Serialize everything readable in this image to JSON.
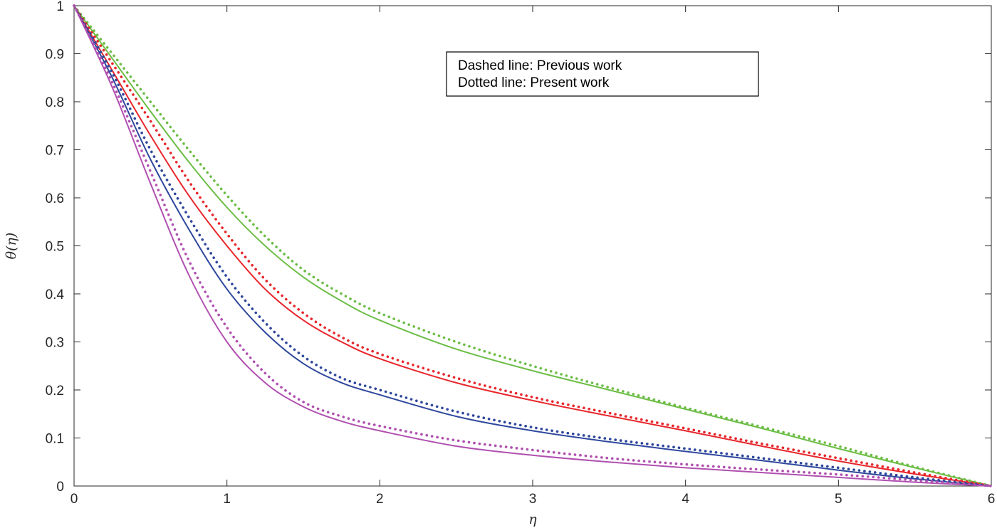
{
  "chart_data": {
    "type": "line",
    "xlabel": "η",
    "ylabel": "θ(η)",
    "xlim": [
      0,
      6
    ],
    "ylim": [
      0,
      1
    ],
    "xticks": [
      0,
      1,
      2,
      3,
      4,
      5,
      6
    ],
    "yticks": [
      0,
      0.1,
      0.2,
      0.3,
      0.4,
      0.5,
      0.6,
      0.7,
      0.8,
      0.9,
      1
    ],
    "ytick_labels": [
      "0",
      "0.1",
      "0.2",
      "0.3",
      "0.4",
      "0.5",
      "0.6",
      "0.7",
      "0.8",
      "0.9",
      "1"
    ],
    "grid": false,
    "legend": {
      "position": "top-center",
      "entries": [
        "Dashed line: Previous work",
        "Dotted line: Present work"
      ]
    },
    "series": [
      {
        "color": "#6cbd45",
        "style": "solid",
        "x": [
          0,
          0.25,
          0.5,
          0.75,
          1,
          1.25,
          1.5,
          1.75,
          2,
          2.5,
          3,
          3.5,
          4,
          4.5,
          5,
          5.5,
          6
        ],
        "y": [
          1,
          0.89,
          0.78,
          0.675,
          0.58,
          0.5,
          0.435,
          0.385,
          0.345,
          0.285,
          0.24,
          0.2,
          0.16,
          0.12,
          0.078,
          0.038,
          0
        ]
      },
      {
        "color": "#6cbd45",
        "style": "dotted",
        "x": [
          0,
          0.25,
          0.5,
          0.75,
          1,
          1.25,
          1.5,
          1.75,
          2,
          2.5,
          3,
          3.5,
          4,
          4.5,
          5,
          5.5,
          6
        ],
        "y": [
          1,
          0.9,
          0.8,
          0.7,
          0.605,
          0.52,
          0.45,
          0.4,
          0.36,
          0.3,
          0.25,
          0.205,
          0.163,
          0.123,
          0.083,
          0.04,
          0
        ]
      },
      {
        "color": "#e8262b",
        "style": "solid",
        "x": [
          0,
          0.25,
          0.5,
          0.75,
          1,
          1.25,
          1.5,
          1.75,
          2,
          2.5,
          3,
          3.5,
          4,
          4.5,
          5,
          5.5,
          6
        ],
        "y": [
          1,
          0.865,
          0.73,
          0.605,
          0.5,
          0.41,
          0.345,
          0.3,
          0.265,
          0.215,
          0.178,
          0.146,
          0.115,
          0.083,
          0.052,
          0.025,
          0
        ]
      },
      {
        "color": "#e8262b",
        "style": "dotted",
        "x": [
          0,
          0.25,
          0.5,
          0.75,
          1,
          1.25,
          1.5,
          1.75,
          2,
          2.5,
          3,
          3.5,
          4,
          4.5,
          5,
          5.5,
          6
        ],
        "y": [
          1,
          0.88,
          0.76,
          0.635,
          0.525,
          0.43,
          0.36,
          0.31,
          0.275,
          0.225,
          0.185,
          0.152,
          0.12,
          0.088,
          0.058,
          0.028,
          0
        ]
      },
      {
        "color": "#2e479c",
        "style": "solid",
        "x": [
          0,
          0.25,
          0.5,
          0.75,
          1,
          1.25,
          1.5,
          1.75,
          2,
          2.5,
          3,
          3.5,
          4,
          4.5,
          5,
          5.5,
          6
        ],
        "y": [
          1,
          0.85,
          0.68,
          0.535,
          0.41,
          0.32,
          0.255,
          0.215,
          0.19,
          0.145,
          0.115,
          0.092,
          0.072,
          0.053,
          0.033,
          0.015,
          0
        ]
      },
      {
        "color": "#2e479c",
        "style": "dotted",
        "x": [
          0,
          0.25,
          0.5,
          0.75,
          1,
          1.25,
          1.5,
          1.75,
          2,
          2.5,
          3,
          3.5,
          4,
          4.5,
          5,
          5.5,
          6
        ],
        "y": [
          1,
          0.86,
          0.7,
          0.56,
          0.435,
          0.34,
          0.27,
          0.225,
          0.2,
          0.155,
          0.122,
          0.098,
          0.078,
          0.058,
          0.038,
          0.018,
          0
        ]
      },
      {
        "color": "#b04fb0",
        "style": "solid",
        "x": [
          0,
          0.25,
          0.5,
          0.75,
          1,
          1.25,
          1.5,
          1.75,
          2,
          2.5,
          3,
          3.5,
          4,
          4.5,
          5,
          5.5,
          6
        ],
        "y": [
          1,
          0.83,
          0.63,
          0.44,
          0.3,
          0.215,
          0.165,
          0.135,
          0.115,
          0.083,
          0.064,
          0.05,
          0.038,
          0.028,
          0.018,
          0.008,
          0
        ]
      },
      {
        "color": "#b04fb0",
        "style": "dotted",
        "x": [
          0,
          0.25,
          0.5,
          0.75,
          1,
          1.25,
          1.5,
          1.75,
          2,
          2.5,
          3,
          3.5,
          4,
          4.5,
          5,
          5.5,
          6
        ],
        "y": [
          1,
          0.84,
          0.655,
          0.47,
          0.33,
          0.235,
          0.175,
          0.145,
          0.125,
          0.095,
          0.075,
          0.058,
          0.045,
          0.034,
          0.024,
          0.012,
          0
        ]
      }
    ]
  }
}
